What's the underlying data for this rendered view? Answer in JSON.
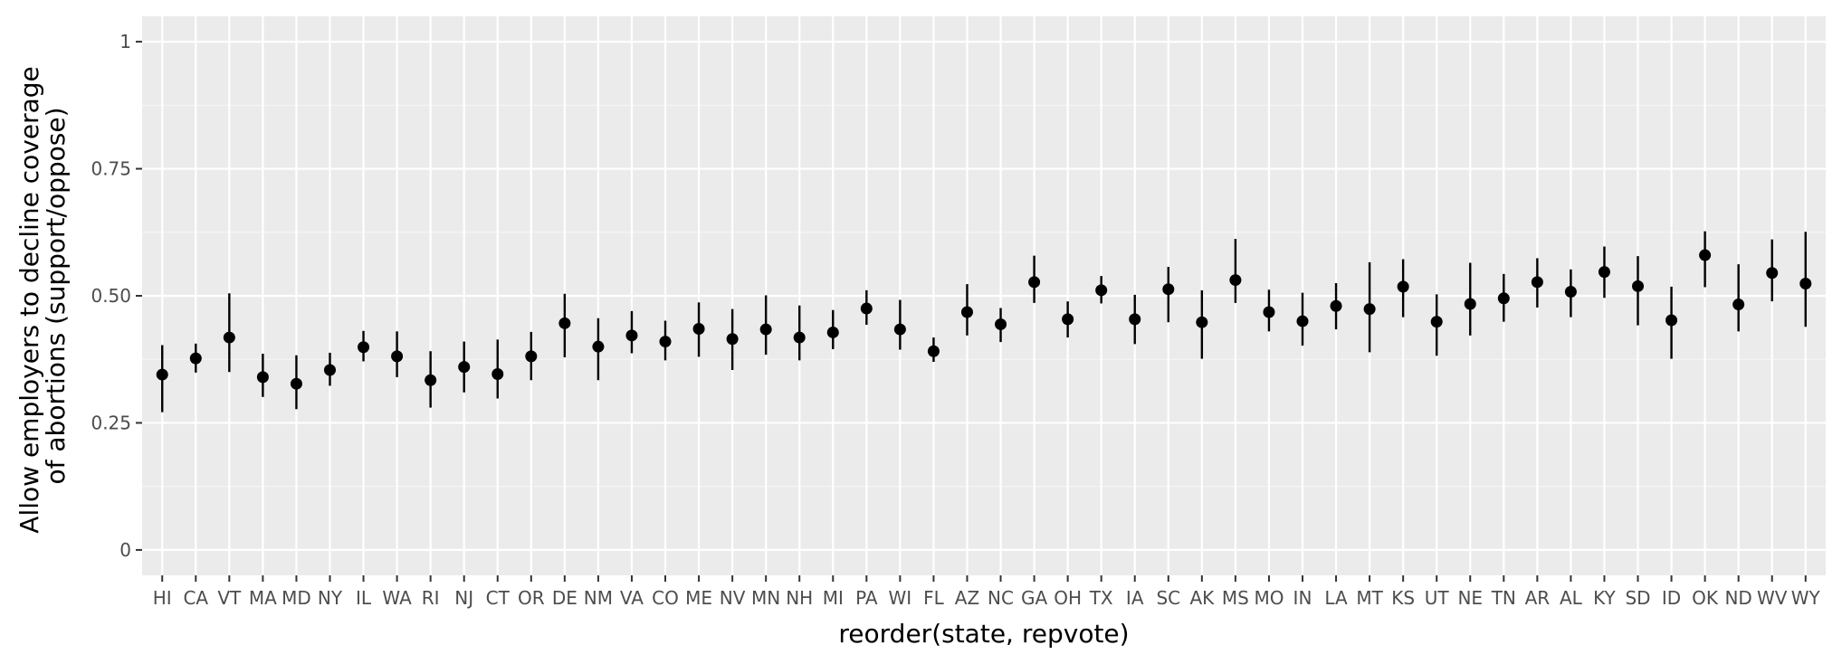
{
  "chart_data": {
    "type": "scatter",
    "title": "",
    "xlabel": "reorder(state, repvote)",
    "ylabel_lines": [
      "Allow employers to decline coverage",
      "of abortions (support/oppose)"
    ],
    "ylim": [
      -0.05,
      1.05
    ],
    "yticks": [
      0,
      0.25,
      0.5,
      0.75,
      1
    ],
    "ytick_labels": [
      "0",
      "0.25",
      "0.50",
      "0.75",
      "1"
    ],
    "grid": true,
    "categories": [
      "HI",
      "CA",
      "VT",
      "MA",
      "MD",
      "NY",
      "IL",
      "WA",
      "RI",
      "NJ",
      "CT",
      "OR",
      "DE",
      "NM",
      "VA",
      "CO",
      "ME",
      "NV",
      "MN",
      "NH",
      "MI",
      "PA",
      "WI",
      "FL",
      "AZ",
      "NC",
      "GA",
      "OH",
      "TX",
      "IA",
      "SC",
      "AK",
      "MS",
      "MO",
      "IN",
      "LA",
      "MT",
      "KS",
      "UT",
      "NE",
      "TN",
      "AR",
      "AL",
      "KY",
      "SD",
      "ID",
      "OK",
      "ND",
      "WV",
      "WY"
    ],
    "values": [
      0.345,
      0.377,
      0.418,
      0.34,
      0.327,
      0.354,
      0.399,
      0.381,
      0.334,
      0.36,
      0.346,
      0.381,
      0.446,
      0.4,
      0.422,
      0.41,
      0.435,
      0.415,
      0.434,
      0.418,
      0.428,
      0.475,
      0.434,
      0.391,
      0.468,
      0.444,
      0.527,
      0.454,
      0.511,
      0.454,
      0.513,
      0.448,
      0.531,
      0.468,
      0.45,
      0.48,
      0.474,
      0.518,
      0.449,
      0.484,
      0.495,
      0.527,
      0.508,
      0.547,
      0.519,
      0.452,
      0.58,
      0.483,
      0.545,
      0.524
    ],
    "lower": [
      0.271,
      0.349,
      0.35,
      0.301,
      0.277,
      0.323,
      0.371,
      0.34,
      0.28,
      0.31,
      0.298,
      0.334,
      0.379,
      0.334,
      0.387,
      0.373,
      0.38,
      0.354,
      0.384,
      0.373,
      0.395,
      0.443,
      0.394,
      0.37,
      0.422,
      0.409,
      0.486,
      0.418,
      0.485,
      0.405,
      0.448,
      0.376,
      0.486,
      0.43,
      0.402,
      0.434,
      0.389,
      0.458,
      0.382,
      0.422,
      0.449,
      0.477,
      0.458,
      0.496,
      0.442,
      0.376,
      0.517,
      0.43,
      0.489,
      0.439
    ],
    "upper": [
      0.403,
      0.406,
      0.505,
      0.386,
      0.383,
      0.388,
      0.431,
      0.43,
      0.391,
      0.41,
      0.414,
      0.429,
      0.504,
      0.456,
      0.47,
      0.451,
      0.487,
      0.474,
      0.501,
      0.481,
      0.472,
      0.511,
      0.492,
      0.418,
      0.523,
      0.476,
      0.579,
      0.489,
      0.539,
      0.502,
      0.557,
      0.511,
      0.612,
      0.512,
      0.506,
      0.525,
      0.566,
      0.572,
      0.503,
      0.565,
      0.543,
      0.574,
      0.552,
      0.597,
      0.578,
      0.518,
      0.627,
      0.562,
      0.611,
      0.626
    ],
    "colors": {
      "panel": "#ebebeb",
      "grid_major": "#ffffff",
      "grid_minor": "#f5f5f5",
      "point": "#000000",
      "tick": "#333333"
    }
  }
}
